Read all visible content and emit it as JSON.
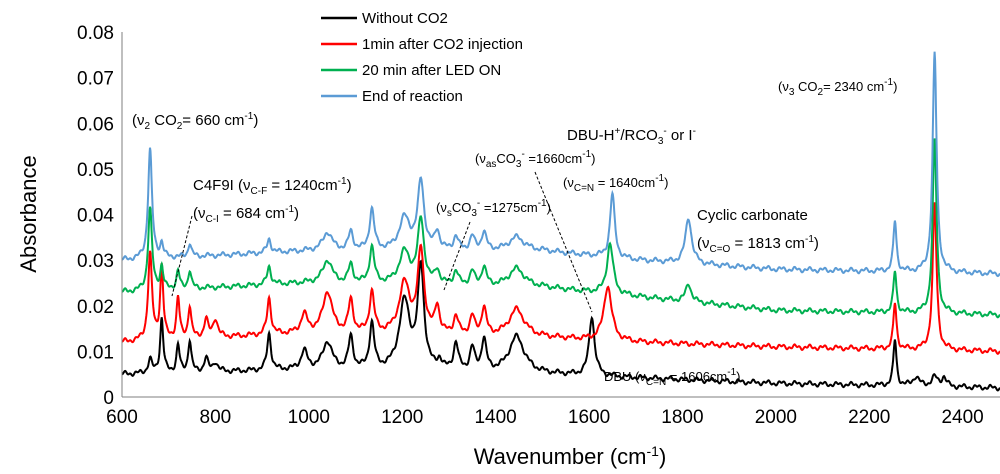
{
  "chart_data": {
    "type": "line",
    "xlabel": "Wavenumber (cm",
    "xlabel_sup": "-1",
    "xlabel_end": ")",
    "ylabel": "Absorbance",
    "xlim": [
      600,
      2480
    ],
    "ylim": [
      0,
      0.08
    ],
    "x_ticks": [
      600,
      800,
      1000,
      1200,
      1400,
      1600,
      1800,
      2000,
      2200,
      2400
    ],
    "x_tick_labels": [
      "600",
      "800",
      "1000",
      "1200",
      "1400",
      "1600",
      "1800",
      "2000",
      "2200",
      "2400"
    ],
    "y_ticks": [
      0,
      0.01,
      0.02,
      0.03,
      0.04,
      0.05,
      0.06,
      0.07,
      0.08
    ],
    "y_tick_labels": [
      "0",
      "0.01",
      "0.02",
      "0.03",
      "0.04",
      "0.05",
      "0.06",
      "0.07",
      "0.08"
    ],
    "grid": false,
    "legend_position": "top-center",
    "series": [
      {
        "name": "Without CO2",
        "color": "#000000",
        "baseline": [
          [
            600,
            0.005
          ],
          [
            1000,
            0.006
          ],
          [
            1500,
            0.005
          ],
          [
            2000,
            0.003
          ],
          [
            2480,
            0.002
          ]
        ],
        "peaks": [
          [
            660,
            0.003,
            5
          ],
          [
            685,
            0.012,
            4
          ],
          [
            720,
            0.006,
            4
          ],
          [
            745,
            0.007,
            4
          ],
          [
            780,
            0.003,
            5
          ],
          [
            800,
            0.002,
            6
          ],
          [
            915,
            0.008,
            5
          ],
          [
            990,
            0.004,
            8
          ],
          [
            1040,
            0.006,
            12
          ],
          [
            1090,
            0.007,
            6
          ],
          [
            1135,
            0.01,
            6
          ],
          [
            1205,
            0.015,
            14
          ],
          [
            1240,
            0.022,
            8
          ],
          [
            1280,
            0.002,
            6
          ],
          [
            1315,
            0.006,
            6
          ],
          [
            1350,
            0.005,
            6
          ],
          [
            1375,
            0.007,
            6
          ],
          [
            1445,
            0.008,
            20
          ],
          [
            1606,
            0.013,
            7
          ],
          [
            2255,
            0.01,
            4
          ],
          [
            2300,
            0.002,
            8
          ],
          [
            2340,
            0.002,
            8
          ],
          [
            2360,
            0.002,
            6
          ]
        ]
      },
      {
        "name": "1min after CO2 injection",
        "color": "#ff0000",
        "baseline": [
          [
            600,
            0.012
          ],
          [
            1000,
            0.014
          ],
          [
            1500,
            0.013
          ],
          [
            1700,
            0.012
          ],
          [
            2000,
            0.011
          ],
          [
            2480,
            0.01
          ]
        ],
        "peaks": [
          [
            660,
            0.019,
            5
          ],
          [
            685,
            0.016,
            4
          ],
          [
            720,
            0.009,
            4
          ],
          [
            745,
            0.007,
            4
          ],
          [
            780,
            0.004,
            5
          ],
          [
            800,
            0.004,
            6
          ],
          [
            915,
            0.008,
            5
          ],
          [
            990,
            0.004,
            8
          ],
          [
            1040,
            0.009,
            12
          ],
          [
            1090,
            0.007,
            6
          ],
          [
            1135,
            0.009,
            6
          ],
          [
            1205,
            0.011,
            14
          ],
          [
            1240,
            0.018,
            8
          ],
          [
            1275,
            0.006,
            6
          ],
          [
            1315,
            0.004,
            6
          ],
          [
            1350,
            0.004,
            6
          ],
          [
            1375,
            0.006,
            6
          ],
          [
            1445,
            0.006,
            20
          ],
          [
            1640,
            0.012,
            10
          ],
          [
            2255,
            0.01,
            4
          ],
          [
            2340,
            0.032,
            5
          ]
        ]
      },
      {
        "name": "20 min after LED ON",
        "color": "#00b050",
        "baseline": [
          [
            600,
            0.023
          ],
          [
            1000,
            0.025
          ],
          [
            1500,
            0.024
          ],
          [
            1700,
            0.022
          ],
          [
            2000,
            0.019
          ],
          [
            2480,
            0.018
          ]
        ],
        "peaks": [
          [
            660,
            0.018,
            5
          ],
          [
            685,
            0.005,
            4
          ],
          [
            720,
            0.004,
            4
          ],
          [
            745,
            0.004,
            4
          ],
          [
            915,
            0.004,
            5
          ],
          [
            1040,
            0.005,
            12
          ],
          [
            1090,
            0.004,
            6
          ],
          [
            1135,
            0.008,
            6
          ],
          [
            1205,
            0.007,
            14
          ],
          [
            1240,
            0.014,
            8
          ],
          [
            1275,
            0.003,
            6
          ],
          [
            1315,
            0.003,
            6
          ],
          [
            1350,
            0.003,
            6
          ],
          [
            1375,
            0.004,
            6
          ],
          [
            1445,
            0.004,
            20
          ],
          [
            1645,
            0.011,
            8
          ],
          [
            1813,
            0.004,
            7
          ],
          [
            2255,
            0.009,
            4
          ],
          [
            2340,
            0.038,
            5
          ]
        ]
      },
      {
        "name": "End of reaction",
        "color": "#5b9bd5",
        "baseline": [
          [
            600,
            0.03
          ],
          [
            1000,
            0.032
          ],
          [
            1500,
            0.032
          ],
          [
            1700,
            0.03
          ],
          [
            2000,
            0.028
          ],
          [
            2480,
            0.027
          ]
        ],
        "peaks": [
          [
            660,
            0.024,
            5
          ],
          [
            685,
            0.003,
            4
          ],
          [
            745,
            0.003,
            4
          ],
          [
            915,
            0.003,
            5
          ],
          [
            1040,
            0.004,
            12
          ],
          [
            1090,
            0.004,
            6
          ],
          [
            1135,
            0.009,
            6
          ],
          [
            1205,
            0.007,
            14
          ],
          [
            1240,
            0.015,
            8
          ],
          [
            1275,
            0.004,
            6
          ],
          [
            1315,
            0.003,
            6
          ],
          [
            1350,
            0.003,
            6
          ],
          [
            1375,
            0.004,
            6
          ],
          [
            1445,
            0.003,
            20
          ],
          [
            1650,
            0.014,
            6
          ],
          [
            1813,
            0.01,
            8
          ],
          [
            2255,
            0.011,
            4
          ],
          [
            2340,
            0.048,
            5
          ]
        ]
      }
    ],
    "annotations": {
      "v2_co2": {
        "pre": "(ν",
        "sub": "2",
        "post": " CO",
        "sub2": "2",
        "post2": "= 660 cm",
        "sup": "-1",
        "end": ")"
      },
      "v3_co2": {
        "pre": "(ν",
        "sub": "3",
        "post": " CO",
        "sub2": "2",
        "post2": "= 2340 cm",
        "sup": "-1",
        "end": ")"
      },
      "c4f9i": {
        "pre": "C4F9I (ν",
        "sub": "C-F",
        "post": " = 1240cm",
        "sup": "-1",
        "end": ")"
      },
      "vci": {
        "pre": "(ν",
        "sub": "C-I",
        "post": " = 684 cm",
        "sup": "-1",
        "end": ")"
      },
      "vsco3": {
        "pre": "(ν",
        "sub": "s",
        "post": "CO",
        "sub2": "3",
        "sup2": "-",
        "post2": " =1275cm",
        "sup": "-1",
        "end": ")"
      },
      "vasco3": {
        "pre": "(ν",
        "sub": "as",
        "post": "CO",
        "sub2": "3",
        "sup2": "-",
        "post2": " =1660cm",
        "sup": "-1",
        "end": ")"
      },
      "dbu_h": {
        "pre": "DBU-H",
        "sup": "+",
        "post": "/RCO",
        "sub": "3",
        "sup2": "-",
        "end": " or I",
        "sup3": "-"
      },
      "vcn_1640": {
        "pre": "(ν",
        "sub": "C=N",
        "post": " = 1640cm",
        "sup": "-1",
        "end": ")"
      },
      "cyclic": {
        "text": "Cyclic carbonate"
      },
      "vco": {
        "pre": "(ν",
        "sub": "C=O",
        "post": " = 1813 cm",
        "sup": "-1",
        "end": ")"
      },
      "dbu": {
        "pre": "DBU (ν",
        "sub": "C=N",
        "post": " = 1606cm",
        "sup": "-1",
        "end": ")"
      }
    }
  }
}
